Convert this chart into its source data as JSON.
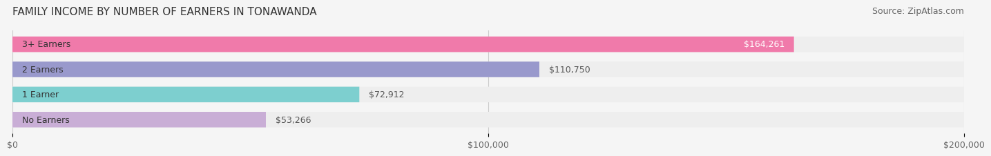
{
  "title": "FAMILY INCOME BY NUMBER OF EARNERS IN TONAWANDA",
  "source": "Source: ZipAtlas.com",
  "categories": [
    "No Earners",
    "1 Earner",
    "2 Earners",
    "3+ Earners"
  ],
  "values": [
    53266,
    72912,
    110750,
    164261
  ],
  "labels": [
    "$53,266",
    "$72,912",
    "$110,750",
    "$164,261"
  ],
  "bar_colors": [
    "#c9aed6",
    "#7dcfcf",
    "#9999cc",
    "#f07aaa"
  ],
  "bar_bg_color": "#eeeeee",
  "bar_label_colors": [
    "#555555",
    "#555555",
    "#555555",
    "#ffffff"
  ],
  "xlim": [
    0,
    200000
  ],
  "xticks": [
    0,
    100000,
    200000
  ],
  "xtick_labels": [
    "$0",
    "$100,000",
    "$200,000"
  ],
  "title_fontsize": 11,
  "source_fontsize": 9,
  "label_fontsize": 9,
  "tick_fontsize": 9,
  "background_color": "#f5f5f5"
}
